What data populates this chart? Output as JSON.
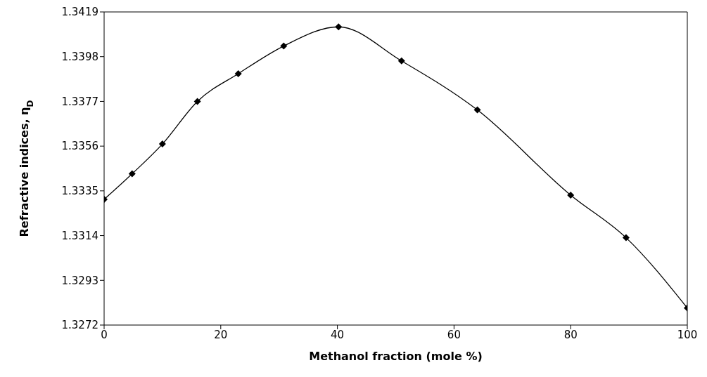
{
  "chart_data": {
    "type": "line",
    "xlabel": "Methanol fraction (mole %)",
    "ylabel": "Refractive indices, η$_{D}$",
    "x": [
      0,
      4.8,
      10,
      16,
      23,
      30.8,
      40.2,
      51,
      64,
      80,
      89.5,
      100
    ],
    "series": [
      {
        "color": "#000000",
        "values": [
          1.3331,
          1.3343,
          1.3357,
          1.3377,
          1.339,
          1.3403,
          1.3412,
          1.3396,
          1.3373,
          1.3333,
          1.3313,
          1.328
        ]
      }
    ],
    "xlim": [
      0,
      100
    ],
    "xticks": [
      0,
      20,
      40,
      60,
      80,
      100
    ],
    "ylim": [
      1.3272,
      1.3419
    ],
    "yticks": [
      1.3272,
      1.3293,
      1.3314,
      1.3335,
      1.3356,
      1.3377,
      1.3398,
      1.3419
    ],
    "marker": "diamond",
    "line_style": "solid"
  }
}
